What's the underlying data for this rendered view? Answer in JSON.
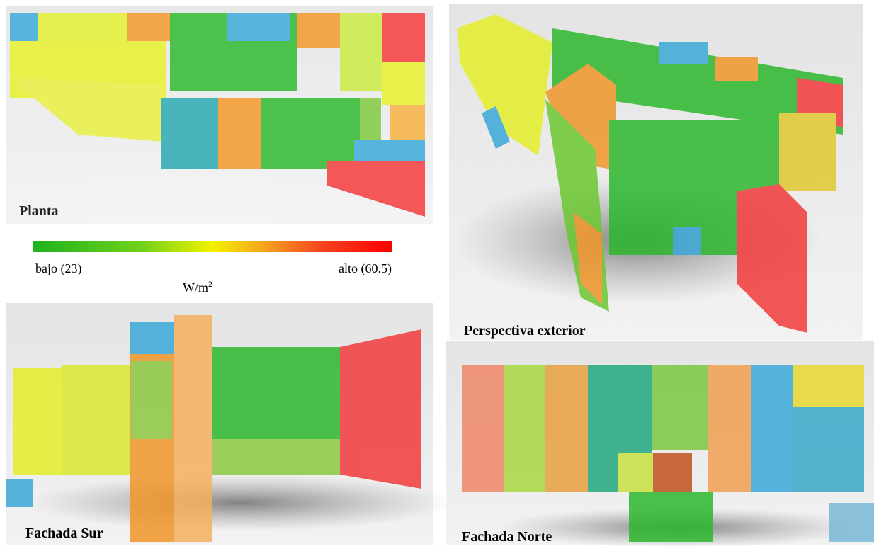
{
  "panels": {
    "planta": "Planta",
    "perspectiva": "Perspectiva exterior",
    "sur": "Fachada Sur",
    "norte": "Fachada Norte"
  },
  "legend": {
    "low": "bajo (23)",
    "high": "alto (60.5)",
    "unit": "W/m",
    "unit_exp": "2"
  }
}
